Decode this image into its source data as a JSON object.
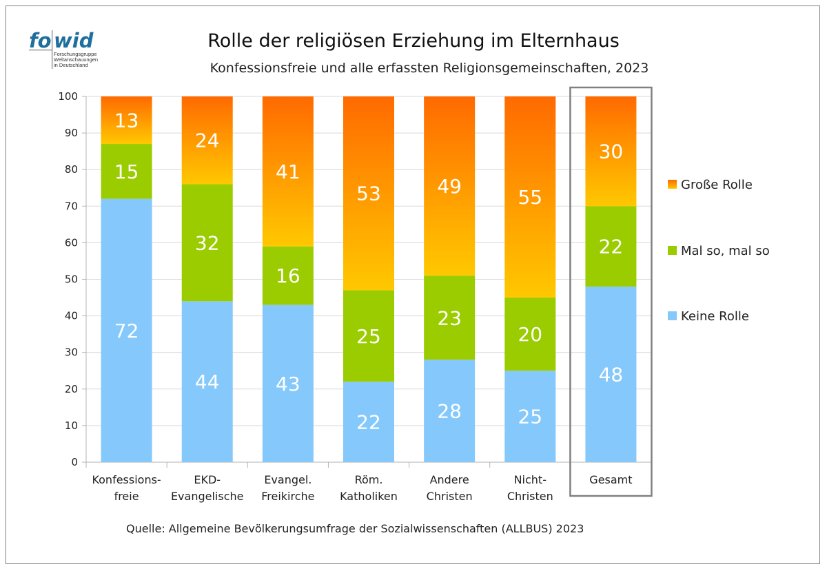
{
  "logo": {
    "word": "fowid",
    "lines": [
      "Forschungsgruppe",
      "Weltanschauungen",
      "in Deutschland"
    ]
  },
  "chart_data": {
    "type": "bar",
    "stacked": true,
    "title": "Rolle der religiösen Erziehung im Elternhaus",
    "subtitle": "Konfessionsfreie und alle erfassten Religionsgemeinschaften, 2023",
    "categories": [
      [
        "Konfessions-",
        "freie"
      ],
      [
        "EKD-",
        "Evangelische"
      ],
      [
        "Evangel.",
        "Freikirche"
      ],
      [
        "Röm.",
        "Katholiken"
      ],
      [
        "Andere",
        "Christen"
      ],
      [
        "Nicht-",
        "Christen"
      ],
      [
        "Gesamt"
      ]
    ],
    "series": [
      {
        "name": "Keine Rolle",
        "color": "#85c8fb",
        "values": [
          72,
          44,
          43,
          22,
          28,
          25,
          48
        ]
      },
      {
        "name": "Mal so, mal so",
        "color": "#9acc00",
        "values": [
          15,
          32,
          16,
          25,
          23,
          20,
          22
        ]
      },
      {
        "name": "Große Rolle",
        "color_top": "#ff6a00",
        "color_bottom": "#ffc800",
        "values": [
          13,
          24,
          41,
          53,
          49,
          55,
          30
        ]
      }
    ],
    "ylim": [
      0,
      100
    ],
    "yticks": [
      0,
      10,
      20,
      30,
      40,
      50,
      60,
      70,
      80,
      90,
      100
    ],
    "legend": [
      "Große Rolle",
      "Mal so, mal so",
      "Keine Rolle"
    ],
    "legend_position": "right",
    "grid": true,
    "highlighted_category": "Gesamt",
    "source": "Quelle: Allgemeine Bevölkerungsumfrage der Sozialwissenschaften (ALLBUS) 2023"
  }
}
